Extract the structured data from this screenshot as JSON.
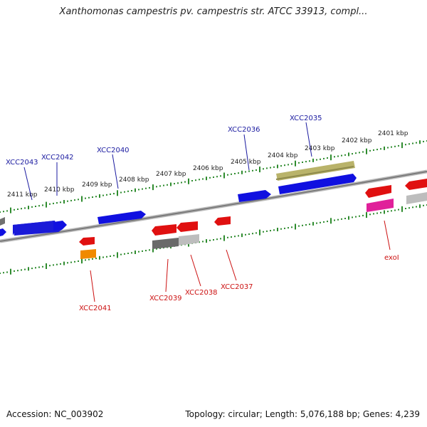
{
  "title": "Xanthomonas campestris pv. campestris str. ATCC 33913, compl...",
  "footer": {
    "accession": "Accession: NC_003902",
    "summary": "Topology: circular; Length: 5,076,188 bp; Genes: 4,239"
  },
  "colors": {
    "backbone": "#8a8a8a",
    "tick": "#2e8b2e",
    "forward_gene": "#1010e0",
    "forward_label": "#1a1aa0",
    "reverse_gene": "#e01010",
    "reverse_label": "#cc1111",
    "olive_gene": "#b9b36a",
    "gray_gene": "#6a6a6a",
    "light_gray_gene": "#bdbdbd",
    "orange_gene": "#f08a00",
    "magenta_gene": "#e0209a"
  },
  "kbp_labels": [
    "2411 kbp",
    "2410 kbp",
    "2409 kbp",
    "2408 kbp",
    "2407 kbp",
    "2406 kbp",
    "2405 kbp",
    "2404 kbp",
    "2403 kbp",
    "2402 kbp",
    "2401 kbp"
  ],
  "forward_labels": [
    "XCC2043",
    "XCC2042",
    "XCC2040",
    "XCC2036",
    "XCC2035"
  ],
  "reverse_labels": [
    "XCC2041",
    "XCC2039",
    "XCC2038",
    "XCC2037",
    "exoI"
  ]
}
